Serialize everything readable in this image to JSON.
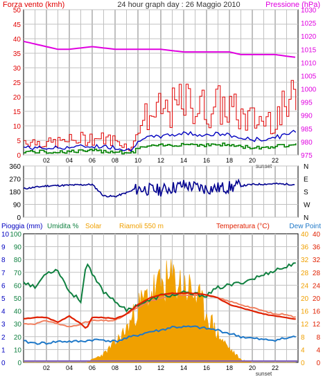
{
  "title": "24 hour graph day : 26 Maggio 2010",
  "colors": {
    "wind": "#e00000",
    "gust": "#e00000",
    "pressure": "#e000e0",
    "wind_avg": "#0000c0",
    "wind_min": "#008000",
    "direction": "#000090",
    "rain": "#0000c0",
    "humidity": "#108040",
    "solar": "#f0a000",
    "riamoli": "#f0a000",
    "temp": "#e02000",
    "dewpoint": "#1e78c8",
    "feels": "#f08060",
    "grid": "#c0c0c0",
    "frame": "#000000"
  },
  "x_ticks": [
    "02",
    "04",
    "06",
    "08",
    "10",
    "12",
    "14",
    "16",
    "18",
    "20",
    "22"
  ],
  "sunset_label": "sunset",
  "panel1": {
    "left_label": "Forza vento (kmh)",
    "right_label": "Pressione (hPa)",
    "left_ticks": [
      "0",
      "5",
      "10",
      "15",
      "20",
      "25",
      "30",
      "35",
      "40",
      "45",
      "50"
    ],
    "right_ticks": [
      "975",
      "980",
      "985",
      "990",
      "995",
      "1000",
      "1005",
      "1010",
      "1015",
      "1020",
      "1025",
      "1030"
    ]
  },
  "panel2": {
    "left_ticks": [
      "0",
      "90",
      "180",
      "270",
      "360"
    ],
    "right_ticks": [
      "N",
      "W",
      "S",
      "E",
      "N"
    ]
  },
  "panel3": {
    "labels": {
      "rain": "Pioggia (mm)",
      "humidity": "Umidita %",
      "solar": "Solar",
      "riamoli": "Riamoli 550 m",
      "temp": "Temperatura (°C)",
      "dewpoint": "Dew Point"
    },
    "rain_ticks": [
      "0",
      "1",
      "2",
      "3",
      "4",
      "5",
      "6",
      "7",
      "8",
      "9",
      "10"
    ],
    "humidity_ticks": [
      "0",
      "10",
      "20",
      "30",
      "40",
      "50",
      "60",
      "70",
      "80",
      "90",
      "100"
    ],
    "temp_ticks_outer": [
      "0",
      "4",
      "8",
      "12",
      "16",
      "20",
      "24",
      "28",
      "32",
      "36",
      "40"
    ],
    "temp_ticks_inner": [
      "0",
      "4",
      "8",
      "12",
      "16",
      "20",
      "24",
      "28",
      "32",
      "36",
      "40"
    ]
  },
  "chart_data": [
    {
      "type": "line",
      "panel": "wind-pressure",
      "x_unit": "hour",
      "series": [
        {
          "name": "Forza vento (kmh)",
          "axis": "left",
          "x": [
            0,
            2,
            4,
            6,
            8,
            9.5,
            10,
            12,
            13,
            14,
            15,
            16,
            17,
            18,
            19,
            20,
            21,
            22,
            23,
            23.7
          ],
          "y": [
            5,
            4,
            5,
            6,
            5,
            2,
            12,
            15,
            16,
            18,
            17,
            16,
            17,
            16,
            13,
            12,
            12,
            14,
            16,
            20
          ]
        },
        {
          "name": "Pressione (hPa)",
          "axis": "right",
          "x": [
            0,
            1,
            2,
            3,
            4,
            6,
            8,
            10,
            12,
            14,
            16,
            18,
            19,
            20,
            22,
            23.7
          ],
          "y": [
            1018,
            1017,
            1016,
            1015,
            1015,
            1016,
            1015,
            1015,
            1015,
            1014,
            1014,
            1014,
            1013,
            1013,
            1013,
            1012
          ]
        }
      ],
      "ylim_left": [
        0,
        50
      ],
      "ylim_right": [
        975,
        1030
      ]
    },
    {
      "type": "scatter",
      "panel": "direction",
      "x_unit": "hour",
      "series": [
        {
          "name": "direction",
          "x": [
            0,
            2,
            4,
            6,
            7,
            8,
            10,
            12,
            14,
            16,
            18,
            20,
            22,
            23.7
          ],
          "y": [
            200,
            220,
            225,
            230,
            150,
            145,
            200,
            190,
            225,
            200,
            210,
            230,
            235,
            230
          ]
        }
      ],
      "ylim": [
        0,
        360
      ]
    },
    {
      "type": "area",
      "panel": "weather",
      "x_unit": "hour",
      "series": [
        {
          "name": "Umidita %",
          "axis": "humidity",
          "x": [
            0,
            1,
            2,
            3,
            4,
            5,
            5.5,
            6,
            7,
            8,
            9,
            10,
            11,
            12,
            13,
            14,
            15,
            16,
            17,
            18,
            19,
            20,
            21,
            22,
            23,
            23.7
          ],
          "y": [
            63,
            58,
            70,
            72,
            55,
            48,
            78,
            68,
            55,
            48,
            40,
            45,
            48,
            52,
            52,
            54,
            53,
            52,
            58,
            60,
            62,
            65,
            68,
            72,
            74,
            78
          ]
        },
        {
          "name": "Temperatura (°C)",
          "axis": "temp",
          "x": [
            0,
            1,
            2,
            3,
            4,
            5,
            5.5,
            6,
            7,
            8,
            9,
            10,
            11,
            12,
            13,
            14,
            15,
            16,
            17,
            18,
            19,
            20,
            21,
            22,
            23,
            23.7
          ],
          "y": [
            13.5,
            14,
            14,
            12.5,
            14.5,
            12,
            10.5,
            14,
            14,
            13.5,
            15,
            18,
            20,
            21,
            21.5,
            21.5,
            21.5,
            21,
            20,
            18,
            17,
            16,
            15,
            14.5,
            14,
            13.5
          ]
        },
        {
          "name": "Dew Point",
          "axis": "temp",
          "x": [
            0,
            1,
            2,
            3,
            4,
            5,
            6,
            7,
            8,
            9,
            10,
            11,
            12,
            13,
            14,
            15,
            16,
            17,
            18,
            19,
            20,
            21,
            22,
            23,
            23.7
          ],
          "y": [
            6.5,
            6,
            6,
            6.5,
            6.5,
            6.5,
            7,
            7,
            6.5,
            7.5,
            8.5,
            9.5,
            10,
            11,
            11,
            11,
            10.5,
            10,
            9,
            8,
            7.5,
            7,
            7,
            7.5,
            8
          ]
        },
        {
          "name": "Solar",
          "axis": "temp",
          "x": [
            0,
            5.5,
            6,
            7,
            8,
            9,
            10,
            11,
            12,
            13,
            14,
            15,
            16,
            17,
            18,
            19,
            20
          ],
          "y": [
            0,
            0,
            1,
            3,
            7,
            12,
            20,
            25,
            28,
            30,
            28,
            25,
            18,
            10,
            5,
            1,
            0
          ]
        },
        {
          "name": "Riamoli 550 m",
          "axis": "temp",
          "x": [
            0,
            1,
            2,
            3,
            4,
            5,
            6,
            7,
            8,
            9,
            10,
            11,
            12,
            13,
            14,
            15,
            16,
            17,
            18,
            19,
            20,
            21,
            22,
            23,
            23.7
          ],
          "y": [
            12,
            12,
            13,
            12,
            11,
            12,
            13,
            13,
            13,
            15,
            17,
            19,
            20,
            21,
            21,
            21,
            21,
            20,
            19,
            18,
            17,
            16,
            15,
            15,
            14
          ]
        },
        {
          "name": "Pioggia (mm)",
          "axis": "rain",
          "x": [
            0,
            23.7
          ],
          "y": [
            0,
            0
          ]
        }
      ],
      "ylim_humidity": [
        0,
        100
      ],
      "ylim_temp": [
        0,
        40
      ],
      "ylim_rain": [
        0,
        10
      ]
    }
  ]
}
